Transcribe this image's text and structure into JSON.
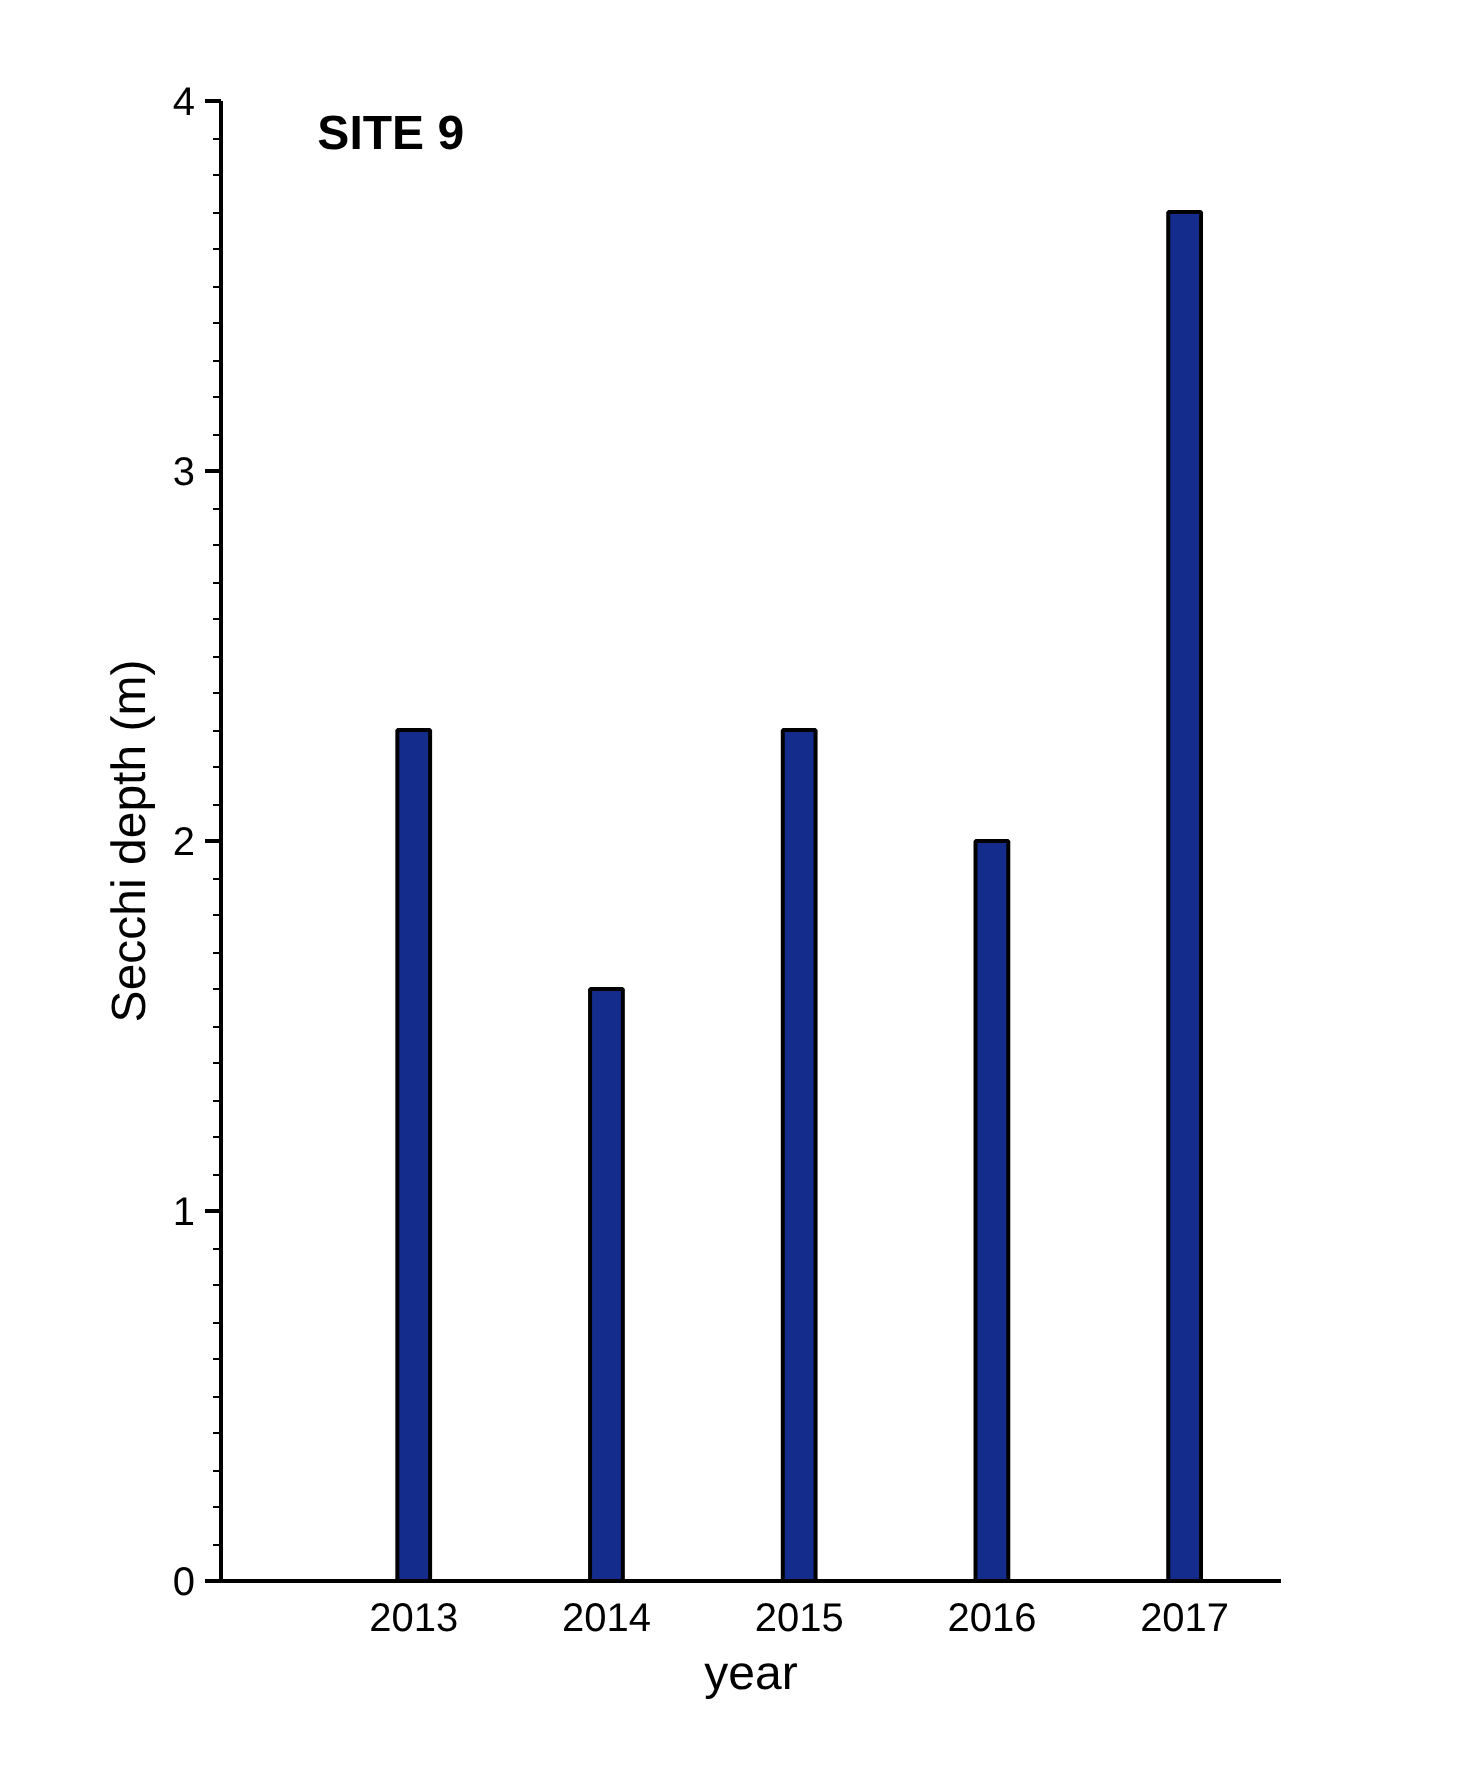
{
  "chart_data": {
    "type": "bar",
    "title": "SITE 9",
    "xlabel": "year",
    "ylabel": "Secchi depth (m)",
    "categories": [
      "2013",
      "2014",
      "2015",
      "2016",
      "2017"
    ],
    "values": [
      2.3,
      1.6,
      2.3,
      2.0,
      3.7
    ],
    "color": "#142d8c",
    "ylim": [
      0,
      4
    ],
    "yticks": [
      0,
      1,
      2,
      3,
      4
    ],
    "grid": false
  }
}
